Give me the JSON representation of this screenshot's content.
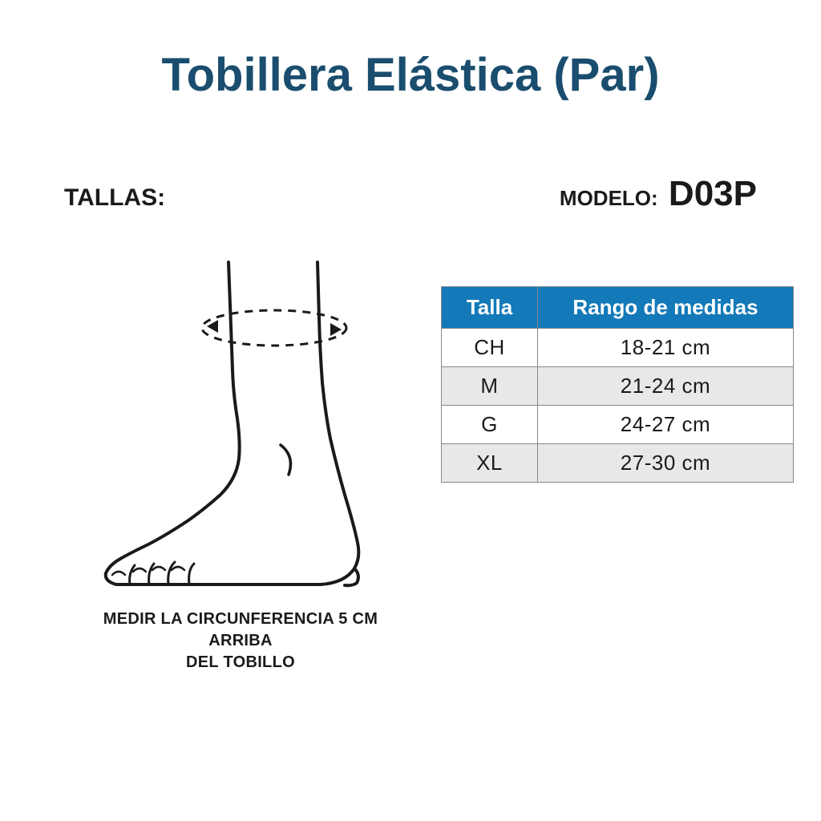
{
  "title": "Tobillera Elástica (Par)",
  "labels": {
    "tallas": "TALLAS:",
    "modelo_label": "MODELO:",
    "modelo_value": "D03P"
  },
  "caption": {
    "line1": "MEDIR LA CIRCUNFERENCIA 5 CM ARRIBA",
    "line2": "DEL TOBILLO"
  },
  "table": {
    "columns": [
      "Talla",
      "Rango de medidas"
    ],
    "rows": [
      [
        "CH",
        "18-21 cm"
      ],
      [
        "M",
        "21-24 cm"
      ],
      [
        "G",
        "24-27 cm"
      ],
      [
        "XL",
        "27-30 cm"
      ]
    ],
    "header_bg": "#1379b8",
    "header_color": "#ffffff",
    "border_color": "#888888",
    "row_odd_bg": "#ffffff",
    "row_even_bg": "#e8e8e8",
    "font_size": 26,
    "col1_width": 120,
    "total_width": 440
  },
  "colors": {
    "title": "#1a4d6e",
    "text": "#1a1a1a",
    "background": "#ffffff",
    "diagram_stroke": "#1a1a1a"
  },
  "typography": {
    "title_fontsize": 58,
    "label_fontsize": 30,
    "modelo_value_fontsize": 44,
    "caption_fontsize": 20
  },
  "diagram": {
    "type": "line-illustration",
    "description": "ankle/foot outline with dashed circumference measurement ellipse and arrows 5cm above ankle",
    "stroke_color": "#1a1a1a",
    "stroke_width": 4,
    "dash_stroke_width": 3
  }
}
